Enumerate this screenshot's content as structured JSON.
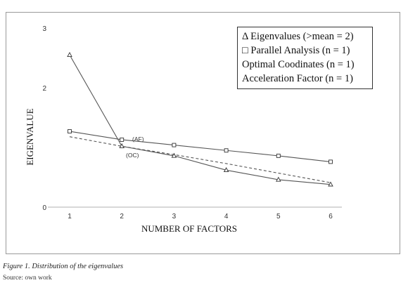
{
  "chart_data": {
    "type": "line",
    "xlabel": "NUMBER OF FACTORS",
    "ylabel": "EIGENVALUE",
    "x": [
      1,
      2,
      3,
      4,
      5,
      6
    ],
    "x_ticks": [
      "1",
      "2",
      "3",
      "4",
      "5",
      "6"
    ],
    "y_ticks": [
      "0",
      "2",
      "3"
    ],
    "ylim": [
      0,
      3
    ],
    "grid": false,
    "legend_position": "top-right",
    "legend": [
      "Δ Eigenvalues  (>mean = 2)",
      "□ Parallel  Analysis   (n = 1)",
      "Optimal Coodinates (n = 1)",
      "Acceleration  Factor  (n = 1)"
    ],
    "series": [
      {
        "marker": "triangle",
        "line": "solid",
        "values": [
          2.55,
          1.02,
          0.86,
          0.62,
          0.46,
          0.38
        ]
      },
      {
        "marker": "square",
        "line": "solid",
        "values": [
          1.27,
          1.13,
          1.04,
          0.95,
          0.86,
          0.76
        ]
      },
      {
        "marker": "none",
        "line": "dashed",
        "values": [
          1.18,
          1.02,
          0.88,
          0.73,
          0.57,
          0.41
        ]
      }
    ],
    "annotations": [
      "(AF)",
      "(OC)"
    ]
  },
  "caption": "Figure 1. Distribution of the eigenvalues",
  "source": "Source: own work"
}
